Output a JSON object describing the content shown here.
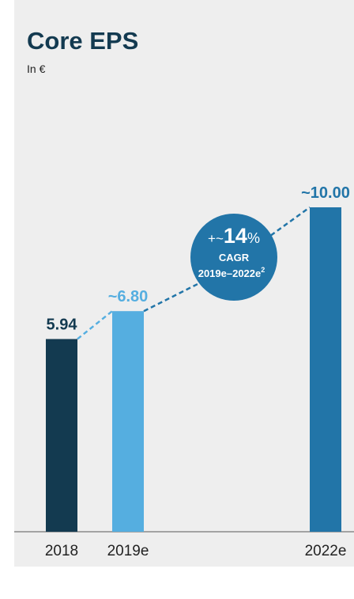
{
  "chart_data": {
    "type": "bar",
    "title": "Core EPS",
    "subtitle": "In €",
    "categories": [
      "2018",
      "2019e",
      "2022e"
    ],
    "values": [
      5.94,
      6.8,
      10.0
    ],
    "value_labels": [
      "5.94",
      "~6.80",
      "~10.00"
    ],
    "colors": [
      "#133a50",
      "#55aee0",
      "#2275a8"
    ],
    "label_colors": [
      "#133a50",
      "#55aee0",
      "#2275a8"
    ],
    "annotation": {
      "parts": [
        "+~",
        "14",
        "%"
      ],
      "label": "CAGR",
      "period": "2019e–2022e",
      "footnote": "2"
    }
  }
}
